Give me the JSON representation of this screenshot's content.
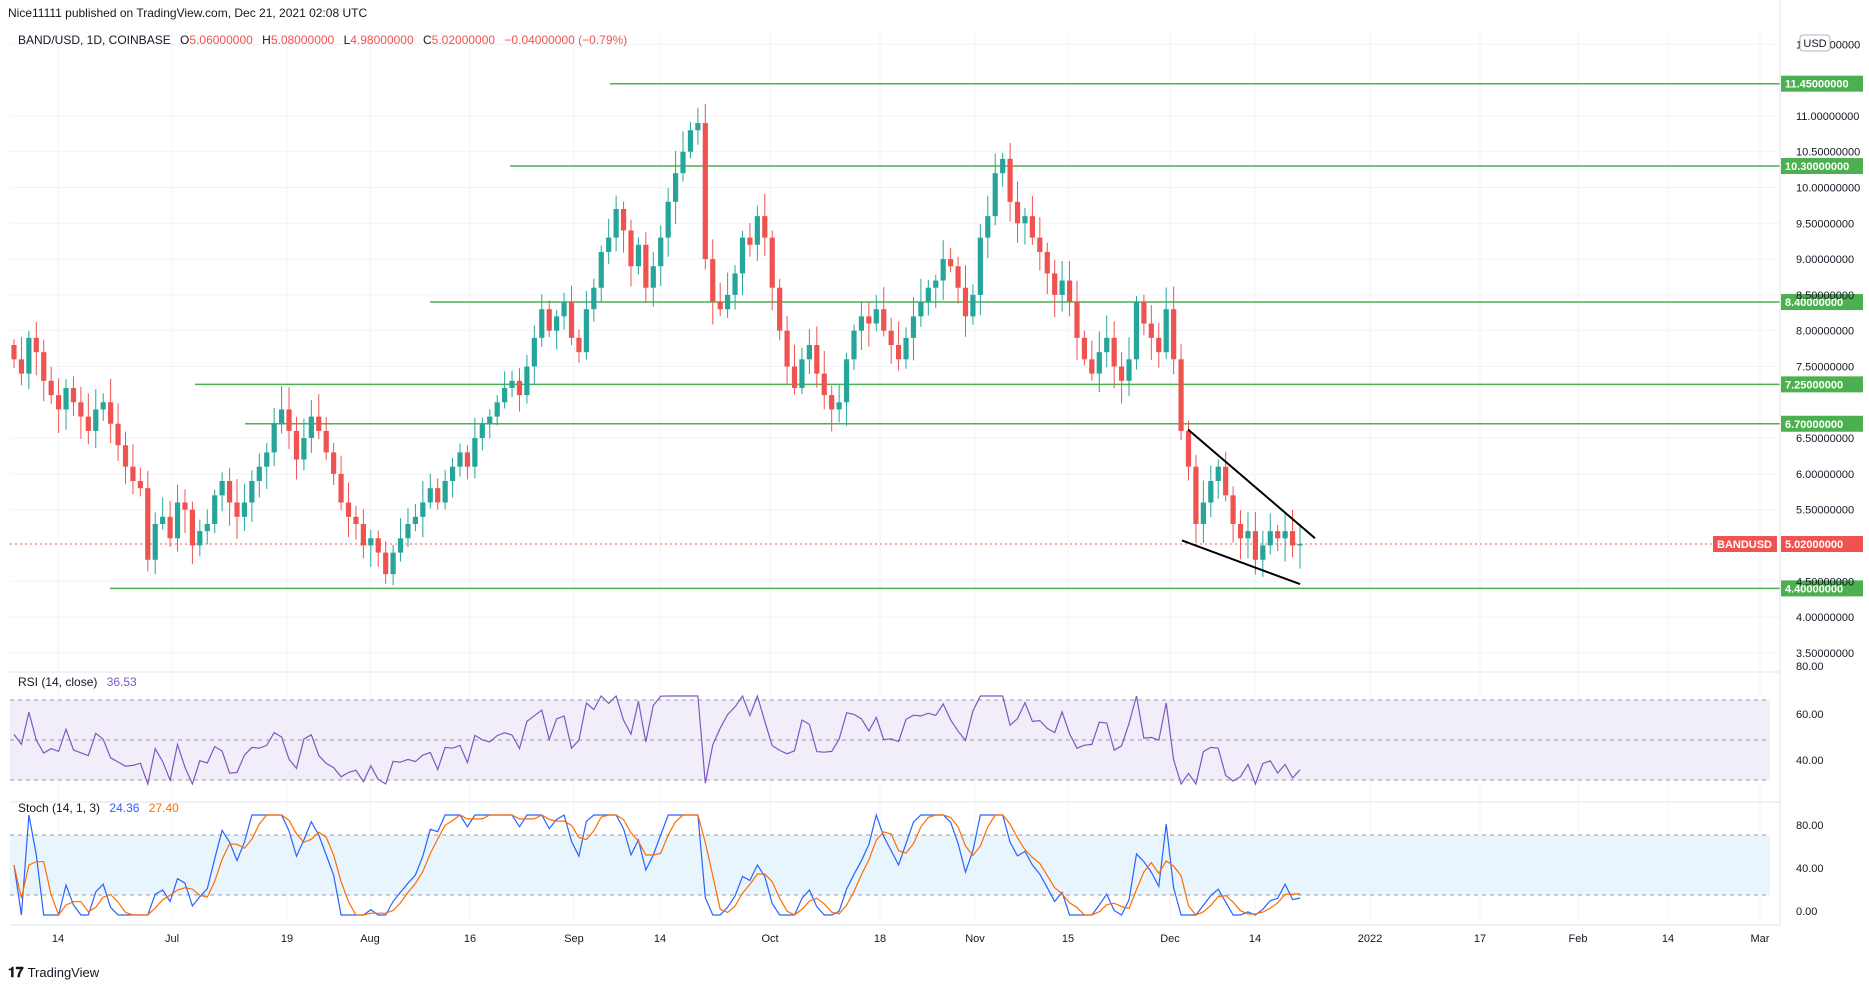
{
  "header": {
    "published": "Nice11111 published on TradingView.com, Dec 21, 2021 02:08 UTC",
    "symbol": "BAND/USD, 1D, COINBASE",
    "o_label": "O",
    "o": "5.06000000",
    "h_label": "H",
    "h": "5.08000000",
    "l_label": "L",
    "l": "4.98000000",
    "c_label": "C",
    "c": "5.02000000",
    "change": "−0.04000000 (−0.79%)"
  },
  "currency": "USD",
  "colors": {
    "up": "#26a69a",
    "down": "#ef5350",
    "hline": "#4caf50",
    "rsi": "#7e57c2",
    "rsi_bg": "#ede7f6",
    "stoch_k": "#2962ff",
    "stoch_d": "#ff6d00",
    "stoch_bg": "#e3f2fd",
    "grid": "#f0f3fa",
    "last_price": "#ef5350"
  },
  "price_axis": {
    "ticks": [
      "12.00000000",
      "11.00000000",
      "10.50000000",
      "10.00000000",
      "9.50000000",
      "9.00000000",
      "8.50000000",
      "8.00000000",
      "7.50000000",
      "6.50000000",
      "6.00000000",
      "5.50000000",
      "4.50000000",
      "4.00000000",
      "3.50000000"
    ],
    "ylim": [
      3.4,
      12.2
    ]
  },
  "levels": [
    {
      "value": 11.45,
      "label": "11.45000000"
    },
    {
      "value": 10.3,
      "label": "10.30000000"
    },
    {
      "value": 8.4,
      "label": "8.40000000"
    },
    {
      "value": 7.25,
      "label": "7.25000000"
    },
    {
      "value": 6.7,
      "label": "6.70000000"
    },
    {
      "value": 4.4,
      "label": "4.40000000"
    }
  ],
  "last_price": {
    "symbol": "BANDUSD",
    "value": 5.02,
    "label": "5.02000000"
  },
  "time_axis": [
    "14",
    "Jul",
    "19",
    "Aug",
    "16",
    "Sep",
    "14",
    "Oct",
    "18",
    "Nov",
    "15",
    "Dec",
    "14",
    "2022",
    "17",
    "Feb",
    "14",
    "Mar"
  ],
  "rsi": {
    "title": "RSI (14, close)",
    "value": "36.53",
    "ticks": [
      "60.00",
      "40.00"
    ],
    "top_tick": "80.00"
  },
  "stoch": {
    "title": "Stoch (14, 1, 3)",
    "k": "24.36",
    "d": "27.40",
    "ticks": [
      "80.00",
      "40.00",
      "0.00"
    ]
  },
  "footer": {
    "brand": "TradingView"
  },
  "chart_data": {
    "type": "candlestick",
    "symbol": "BAND/USD",
    "interval": "1D",
    "description": "Daily candlesticks from early June 2021 to Dec 20 2021",
    "closes": [
      7.6,
      7.4,
      7.9,
      7.7,
      7.3,
      7.1,
      6.9,
      7.2,
      7.0,
      6.8,
      6.6,
      6.9,
      7.0,
      6.7,
      6.4,
      6.1,
      5.9,
      5.8,
      4.8,
      5.3,
      5.4,
      5.1,
      5.6,
      5.5,
      5.0,
      5.2,
      5.3,
      5.7,
      5.9,
      5.6,
      5.4,
      5.6,
      5.9,
      6.1,
      6.3,
      6.7,
      6.9,
      6.6,
      6.2,
      6.5,
      6.8,
      6.6,
      6.3,
      6.0,
      5.6,
      5.4,
      5.3,
      5.0,
      5.1,
      4.9,
      4.6,
      4.9,
      5.1,
      5.3,
      5.4,
      5.6,
      5.8,
      5.6,
      5.9,
      6.1,
      6.3,
      6.1,
      6.5,
      6.7,
      6.8,
      7.0,
      7.2,
      7.3,
      7.1,
      7.5,
      7.9,
      8.3,
      8.0,
      8.2,
      8.4,
      7.9,
      7.7,
      8.3,
      8.6,
      9.1,
      9.3,
      9.7,
      9.4,
      8.9,
      9.2,
      8.6,
      8.9,
      9.3,
      9.8,
      10.2,
      10.5,
      10.8,
      10.9,
      9.0,
      8.4,
      8.3,
      8.5,
      8.8,
      9.3,
      9.2,
      9.6,
      9.3,
      8.6,
      8.0,
      7.5,
      7.2,
      7.6,
      7.8,
      7.4,
      7.1,
      6.9,
      7.0,
      7.6,
      8.0,
      8.2,
      8.1,
      8.3,
      8.0,
      7.8,
      7.6,
      7.9,
      8.2,
      8.4,
      8.6,
      8.7,
      9.0,
      8.9,
      8.6,
      8.2,
      8.5,
      9.3,
      9.6,
      10.2,
      10.4,
      9.8,
      9.5,
      9.6,
      9.3,
      9.1,
      8.8,
      8.5,
      8.7,
      8.4,
      7.9,
      7.6,
      7.4,
      7.7,
      7.9,
      7.5,
      7.3,
      7.6,
      8.4,
      8.1,
      7.9,
      7.7,
      8.3,
      7.6,
      6.6,
      6.1,
      5.3,
      5.6,
      5.9,
      6.1,
      5.7,
      5.3,
      5.1,
      5.2,
      4.8,
      5.0,
      5.2,
      5.1,
      5.2,
      5.0,
      5.02
    ],
    "horizontal_levels": [
      11.45,
      10.3,
      8.4,
      7.25,
      6.7,
      4.4
    ],
    "pattern": "falling wedge",
    "rsi_last": 36.53,
    "stoch_k_last": 24.36,
    "stoch_d_last": 27.4,
    "ylim": [
      3.4,
      12.2
    ]
  }
}
